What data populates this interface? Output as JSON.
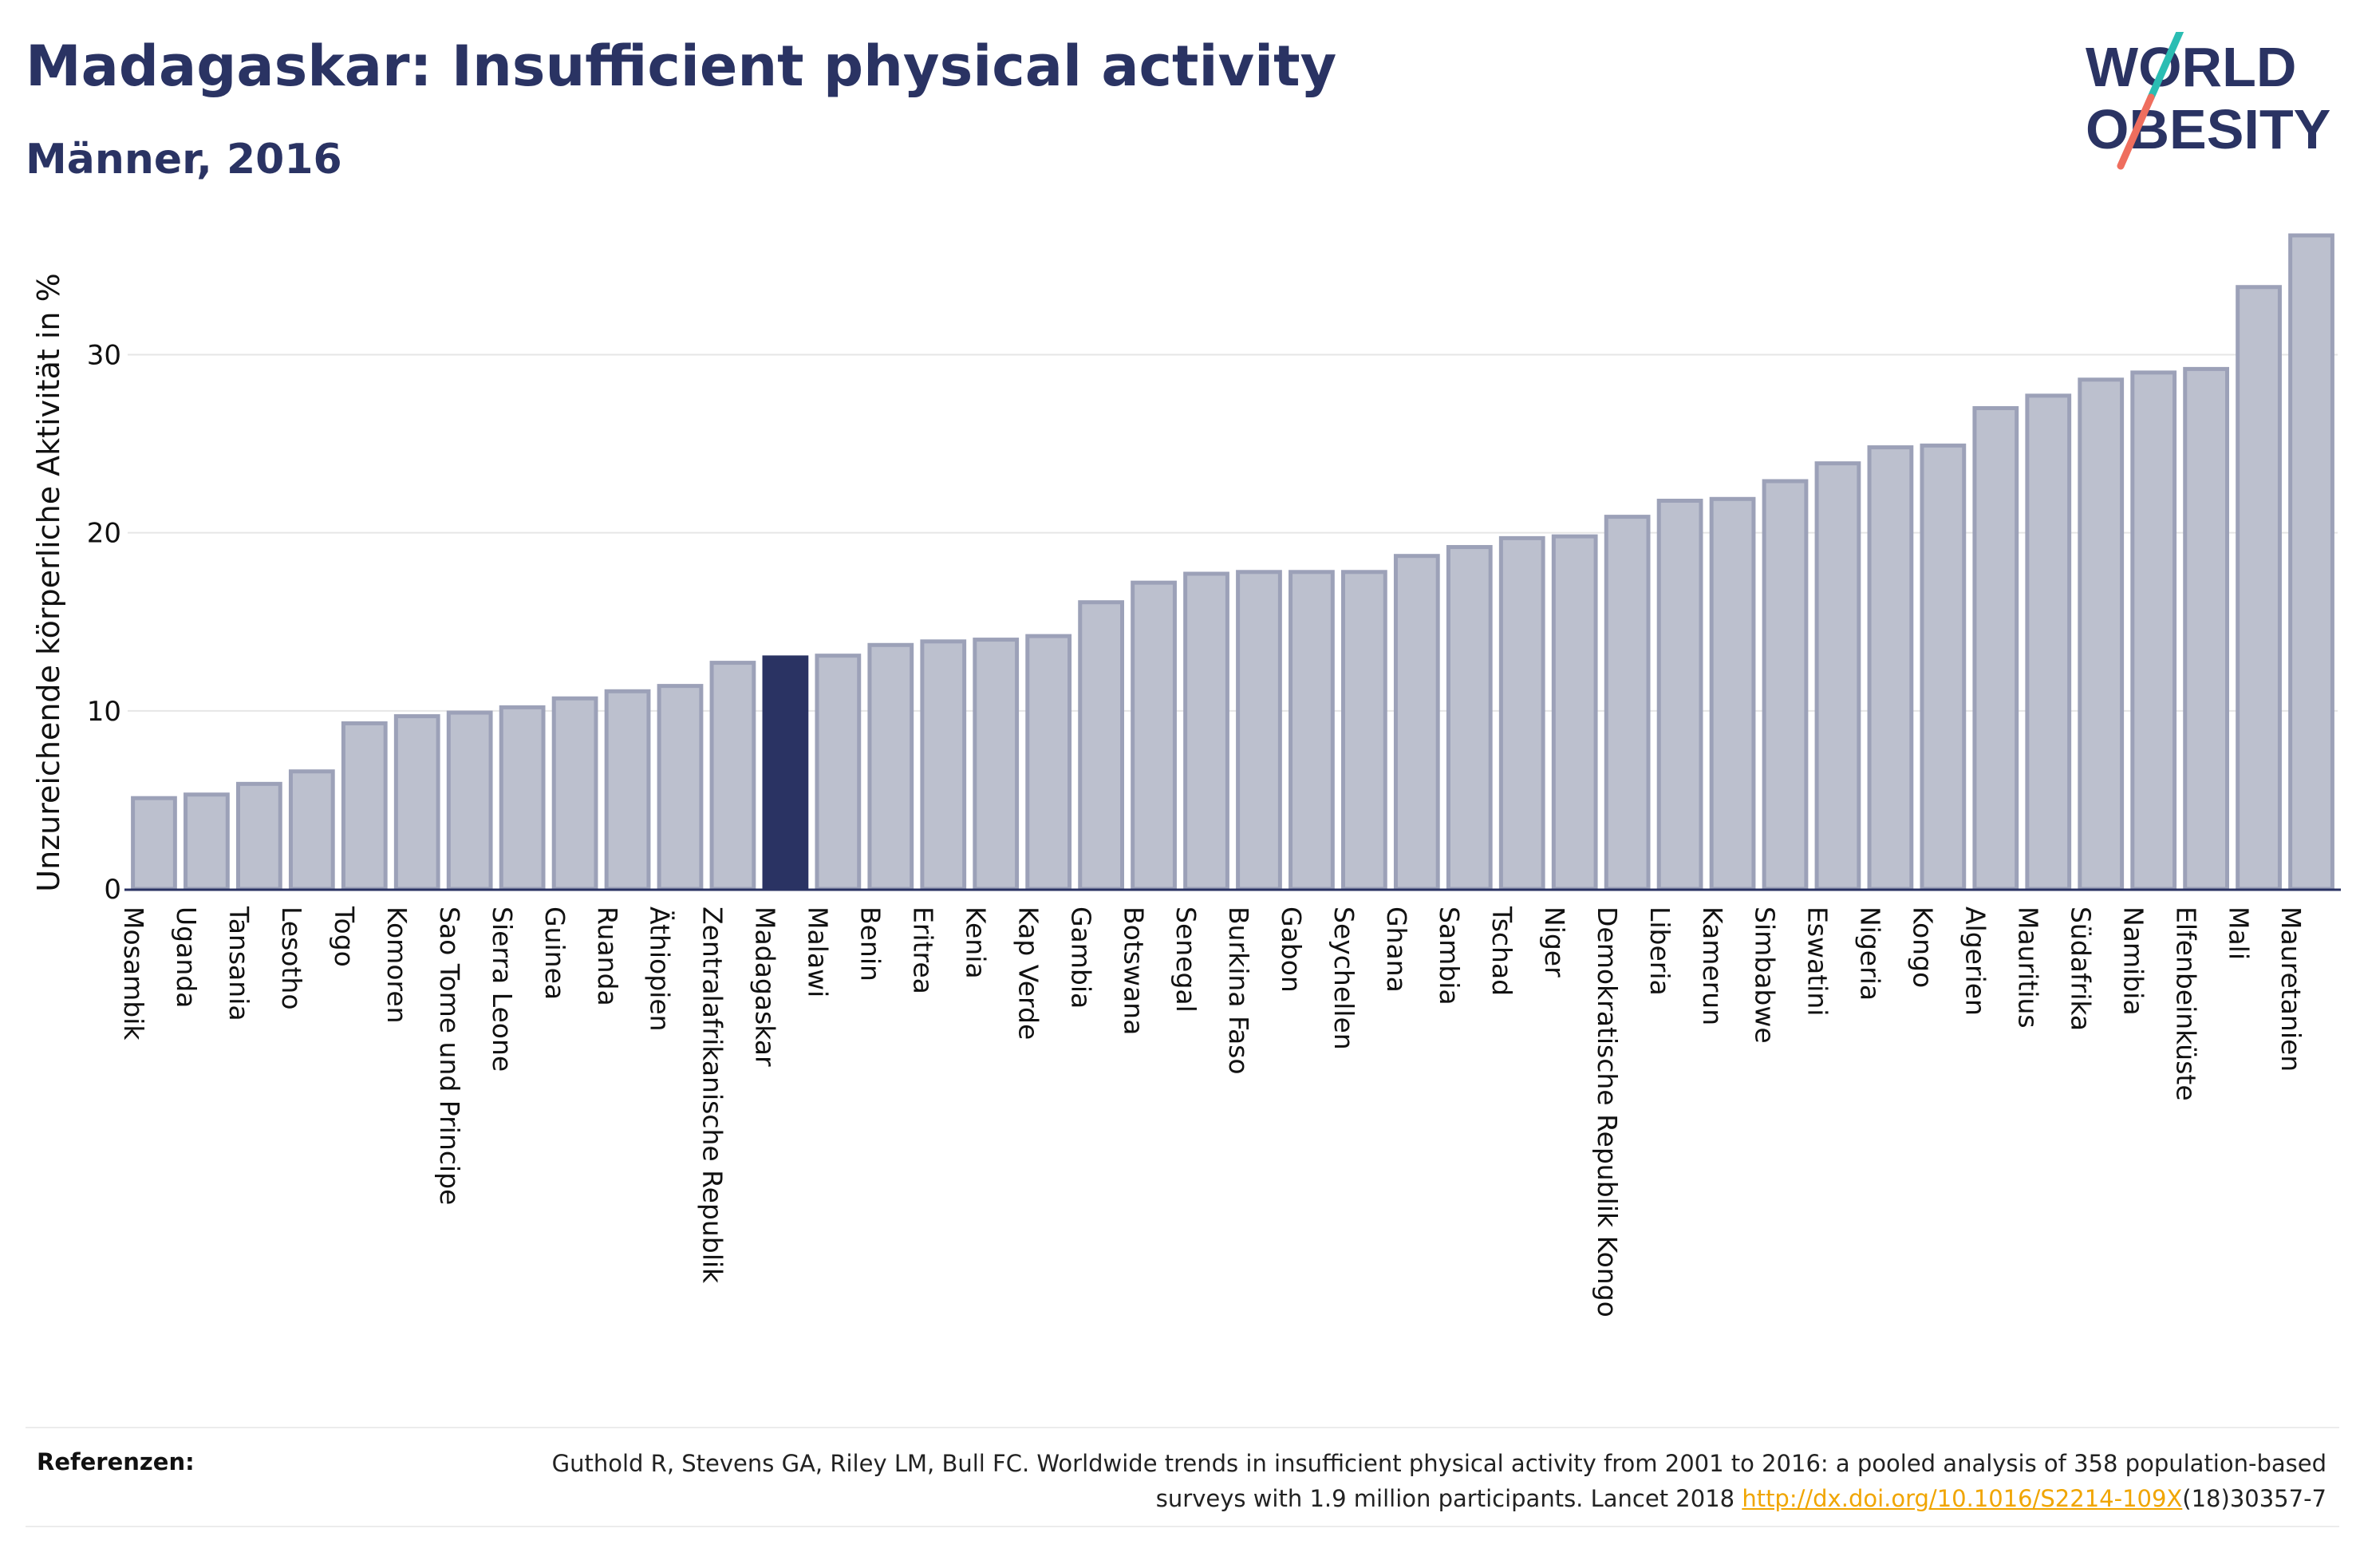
{
  "header": {
    "title": "Madagaskar: Insufficient physical activity",
    "subtitle": "Männer, 2016"
  },
  "logo": {
    "line1": "WORLD",
    "line2": "OBESITY",
    "colors": {
      "text": "#2a3363",
      "slash_top": "#2bbdb3",
      "slash_bottom": "#ef6e5e"
    }
  },
  "colors": {
    "bar": "#bcc0ce",
    "bar_stroke": "#9ca1b8",
    "highlight": "#2a3363",
    "grid": "#e6e6e6",
    "axis": "#2a3363",
    "link": "#f0a500"
  },
  "chart_data": {
    "type": "bar",
    "title": "Madagaskar: Insufficient physical activity",
    "subtitle": "Männer, 2016",
    "ylabel": "Unzureichende körperliche Aktivität in %",
    "xlabel": "",
    "ylim": [
      0,
      38
    ],
    "yticks": [
      0,
      10,
      20,
      30
    ],
    "grid": true,
    "highlight": "Madagaskar",
    "categories": [
      "Mosambik",
      "Uganda",
      "Tansania",
      "Lesotho",
      "Togo",
      "Komoren",
      "Sao Tome und Principe",
      "Sierra Leone",
      "Guinea",
      "Ruanda",
      "Äthiopien",
      "Zentralafrikanische Republik",
      "Madagaskar",
      "Malawi",
      "Benin",
      "Eritrea",
      "Kenia",
      "Kap Verde",
      "Gambia",
      "Botswana",
      "Senegal",
      "Burkina Faso",
      "Gabon",
      "Seychellen",
      "Ghana",
      "Sambia",
      "Tschad",
      "Niger",
      "Demokratische Republik Kongo",
      "Liberia",
      "Kamerun",
      "Simbabwe",
      "Eswatini",
      "Nigeria",
      "Kongo",
      "Algerien",
      "Mauritius",
      "Südafrika",
      "Namibia",
      "Elfenbeinküste",
      "Mali",
      "Mauretanien"
    ],
    "values": [
      5.1,
      5.3,
      5.9,
      6.6,
      9.3,
      9.7,
      9.9,
      10.2,
      10.7,
      11.1,
      11.4,
      12.7,
      13.0,
      13.1,
      13.7,
      13.9,
      14.0,
      14.2,
      16.1,
      17.2,
      17.7,
      17.8,
      17.8,
      17.8,
      18.7,
      19.2,
      19.7,
      19.8,
      20.9,
      21.8,
      21.9,
      22.9,
      23.9,
      24.8,
      24.9,
      27.0,
      27.7,
      28.6,
      29.0,
      29.2,
      33.8,
      36.7
    ]
  },
  "references": {
    "label": "Referenzen:",
    "text_before": "Guthold R, Stevens GA, Riley LM, Bull FC. Worldwide trends in insufficient physical activity from 2001 to 2016: a pooled analysis of 358 population-based surveys with 1.9 million participants. Lancet 2018 ",
    "link": "http://dx.doi.org/10.1016/S2214-109X",
    "text_after": "(18)30357-7"
  }
}
